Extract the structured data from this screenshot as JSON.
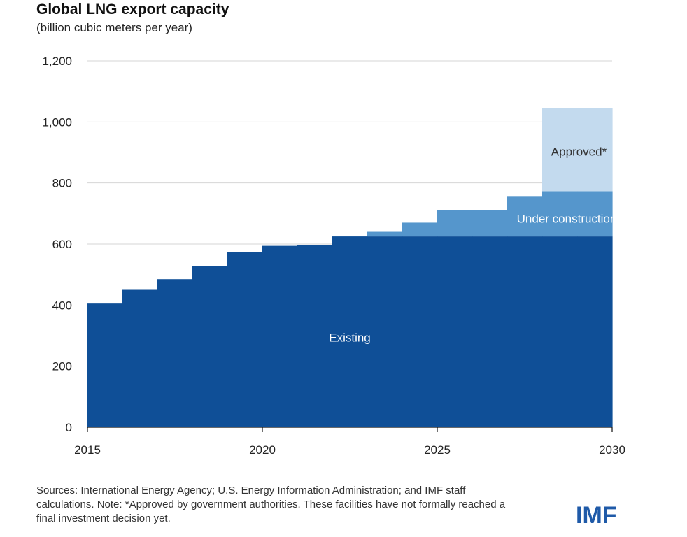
{
  "title": "Global LNG export capacity",
  "subtitle": "(billion cubic meters per year)",
  "source_note": "Sources: International Energy Agency; U.S. Energy Information Administration; and IMF staff calculations. Note: *Approved by government authorities. These facilities have not formally reached a final investment decision yet.",
  "logo_text": "IMF",
  "chart_data": {
    "type": "area",
    "stacked": true,
    "step": true,
    "title": "Global LNG export capacity",
    "ylabel": "billion cubic meters per year",
    "xlabel": "",
    "x": [
      2015,
      2016,
      2017,
      2018,
      2019,
      2020,
      2021,
      2022,
      2023,
      2024,
      2025,
      2026,
      2027,
      2028,
      2029
    ],
    "xlim": [
      2015,
      2030
    ],
    "ylim": [
      0,
      1200
    ],
    "yticks": [
      0,
      200,
      400,
      600,
      800,
      1000,
      1200
    ],
    "ytick_labels": [
      "0",
      "200",
      "400",
      "600",
      "800",
      "1,000",
      "1,200"
    ],
    "xticks": [
      2015,
      2020,
      2025,
      2030
    ],
    "xtick_labels": [
      "2015",
      "2020",
      "2025",
      "2030"
    ],
    "grid": true,
    "series": [
      {
        "name": "Existing",
        "color": "#0f4f97",
        "values": [
          405,
          450,
          485,
          527,
          573,
          594,
          596,
          625,
          625,
          625,
          625,
          625,
          625,
          625,
          625
        ]
      },
      {
        "name": "Under construction",
        "color": "#5596cc",
        "values": [
          0,
          0,
          0,
          0,
          0,
          0,
          0,
          0,
          15,
          45,
          85,
          85,
          130,
          148,
          148
        ]
      },
      {
        "name": "Approved*",
        "color": "#c3daee",
        "values": [
          0,
          0,
          0,
          0,
          0,
          0,
          0,
          0,
          0,
          0,
          0,
          0,
          0,
          273,
          273
        ]
      }
    ],
    "labels": [
      {
        "series": "Existing",
        "text": "Existing",
        "x": 2022.5,
        "y": 280,
        "color": "#ffffff"
      },
      {
        "series": "Under construction",
        "text": "Under construction",
        "x": 2028.7,
        "y": 670,
        "color": "#ffffff"
      },
      {
        "series": "Approved*",
        "text": "Approved*",
        "x": 2029.05,
        "y": 890,
        "color": "#333333"
      }
    ]
  }
}
